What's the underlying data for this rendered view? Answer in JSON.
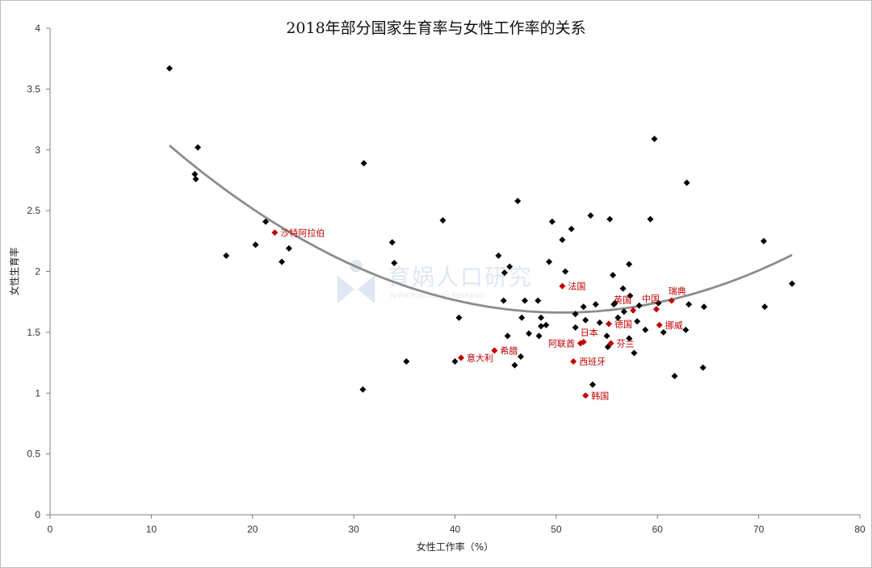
{
  "watermark": {
    "text": "育娲人口研究",
    "sub": "YuWa Population Research"
  },
  "chart_data": {
    "type": "scatter",
    "title": "2018年部分国家生育率与女性工作率的关系",
    "xlabel": "女性工作率（%）",
    "ylabel": "女性生育率",
    "xlim": [
      0,
      80
    ],
    "ylim": [
      0,
      4
    ],
    "x_ticks": [
      0,
      10,
      20,
      30,
      40,
      50,
      60,
      70,
      80
    ],
    "y_ticks": [
      0,
      0.5,
      1,
      1.5,
      2,
      2.5,
      3,
      3.5,
      4
    ],
    "y_tick_labels": [
      "0",
      "0.5",
      "1",
      "1.5",
      "2",
      "2.5",
      "3",
      "3.5",
      "4"
    ],
    "grid": false,
    "colors": {
      "points": "#000000",
      "highlight": "#c00000",
      "trend": "#8c8c8c"
    },
    "trendline": {
      "type": "polynomial-2",
      "x_range": [
        11.8,
        73.3
      ],
      "coefficients": [
        4.0,
        -0.0925,
        0.000915
      ]
    },
    "points": [
      {
        "x": 11.8,
        "y": 3.67
      },
      {
        "x": 14.6,
        "y": 3.02
      },
      {
        "x": 14.3,
        "y": 2.8
      },
      {
        "x": 14.4,
        "y": 2.76
      },
      {
        "x": 17.4,
        "y": 2.13
      },
      {
        "x": 20.3,
        "y": 2.22
      },
      {
        "x": 21.3,
        "y": 2.41
      },
      {
        "x": 22.9,
        "y": 2.08
      },
      {
        "x": 23.6,
        "y": 2.19
      },
      {
        "x": 31.0,
        "y": 2.89
      },
      {
        "x": 30.9,
        "y": 1.03
      },
      {
        "x": 33.8,
        "y": 2.24
      },
      {
        "x": 34.0,
        "y": 2.07
      },
      {
        "x": 35.2,
        "y": 1.26
      },
      {
        "x": 38.8,
        "y": 2.42
      },
      {
        "x": 40.0,
        "y": 1.26
      },
      {
        "x": 40.4,
        "y": 1.62
      },
      {
        "x": 44.3,
        "y": 2.13
      },
      {
        "x": 44.9,
        "y": 1.99
      },
      {
        "x": 45.4,
        "y": 2.04
      },
      {
        "x": 44.8,
        "y": 1.76
      },
      {
        "x": 45.2,
        "y": 1.47
      },
      {
        "x": 46.2,
        "y": 2.58
      },
      {
        "x": 45.9,
        "y": 1.23
      },
      {
        "x": 46.6,
        "y": 1.62
      },
      {
        "x": 46.9,
        "y": 1.76
      },
      {
        "x": 46.5,
        "y": 1.3
      },
      {
        "x": 47.3,
        "y": 1.49
      },
      {
        "x": 48.2,
        "y": 1.76
      },
      {
        "x": 48.3,
        "y": 1.47
      },
      {
        "x": 48.5,
        "y": 1.62
      },
      {
        "x": 48.5,
        "y": 1.55
      },
      {
        "x": 49.0,
        "y": 1.56
      },
      {
        "x": 49.3,
        "y": 2.08
      },
      {
        "x": 49.6,
        "y": 2.41
      },
      {
        "x": 50.6,
        "y": 2.26
      },
      {
        "x": 50.9,
        "y": 2.0
      },
      {
        "x": 51.5,
        "y": 2.35
      },
      {
        "x": 51.9,
        "y": 1.65
      },
      {
        "x": 51.9,
        "y": 1.54
      },
      {
        "x": 52.7,
        "y": 1.71
      },
      {
        "x": 52.9,
        "y": 1.6
      },
      {
        "x": 53.4,
        "y": 2.46
      },
      {
        "x": 53.9,
        "y": 1.73
      },
      {
        "x": 53.6,
        "y": 1.07
      },
      {
        "x": 54.3,
        "y": 1.58
      },
      {
        "x": 55.0,
        "y": 1.47
      },
      {
        "x": 55.1,
        "y": 1.38
      },
      {
        "x": 55.3,
        "y": 2.43
      },
      {
        "x": 55.6,
        "y": 1.97
      },
      {
        "x": 55.8,
        "y": 1.74
      },
      {
        "x": 55.7,
        "y": 1.73
      },
      {
        "x": 56.1,
        "y": 1.62
      },
      {
        "x": 56.6,
        "y": 1.86
      },
      {
        "x": 56.7,
        "y": 1.67
      },
      {
        "x": 57.2,
        "y": 2.06
      },
      {
        "x": 57.3,
        "y": 1.8
      },
      {
        "x": 57.2,
        "y": 1.45
      },
      {
        "x": 57.7,
        "y": 1.33
      },
      {
        "x": 58.0,
        "y": 1.59
      },
      {
        "x": 58.2,
        "y": 1.72
      },
      {
        "x": 58.8,
        "y": 1.52
      },
      {
        "x": 59.3,
        "y": 2.43
      },
      {
        "x": 59.7,
        "y": 3.09
      },
      {
        "x": 60.1,
        "y": 1.74
      },
      {
        "x": 60.6,
        "y": 1.5
      },
      {
        "x": 61.7,
        "y": 1.14
      },
      {
        "x": 62.8,
        "y": 1.52
      },
      {
        "x": 62.9,
        "y": 2.73
      },
      {
        "x": 63.1,
        "y": 1.73
      },
      {
        "x": 64.5,
        "y": 1.21
      },
      {
        "x": 64.6,
        "y": 1.71
      },
      {
        "x": 70.5,
        "y": 2.25
      },
      {
        "x": 70.6,
        "y": 1.71
      },
      {
        "x": 73.3,
        "y": 1.9
      }
    ],
    "highlighted": [
      {
        "name": "沙特阿拉伯",
        "x": 22.2,
        "y": 2.32,
        "label_side": "right"
      },
      {
        "name": "法国",
        "x": 50.6,
        "y": 1.88,
        "label_side": "right"
      },
      {
        "name": "瑞典",
        "x": 61.4,
        "y": 1.76,
        "label_side": "right-up"
      },
      {
        "name": "英国",
        "x": 57.6,
        "y": 1.68,
        "label_side": "left-up"
      },
      {
        "name": "中国",
        "x": 59.9,
        "y": 1.69,
        "label_side": "left-down"
      },
      {
        "name": "挪威",
        "x": 60.2,
        "y": 1.56,
        "label_side": "right"
      },
      {
        "name": "德国",
        "x": 55.2,
        "y": 1.57,
        "label_side": "right"
      },
      {
        "name": "日本",
        "x": 52.7,
        "y": 1.42,
        "label_side": "right-up"
      },
      {
        "name": "阿联酋",
        "x": 52.4,
        "y": 1.41,
        "label_side": "left"
      },
      {
        "name": "芬兰",
        "x": 55.4,
        "y": 1.41,
        "label_side": "right"
      },
      {
        "name": "希腊",
        "x": 43.9,
        "y": 1.35,
        "label_side": "right"
      },
      {
        "name": "意大利",
        "x": 40.6,
        "y": 1.29,
        "label_side": "right"
      },
      {
        "name": "西班牙",
        "x": 51.7,
        "y": 1.26,
        "label_side": "right"
      },
      {
        "name": "韩国",
        "x": 52.9,
        "y": 0.98,
        "label_side": "right"
      }
    ]
  }
}
